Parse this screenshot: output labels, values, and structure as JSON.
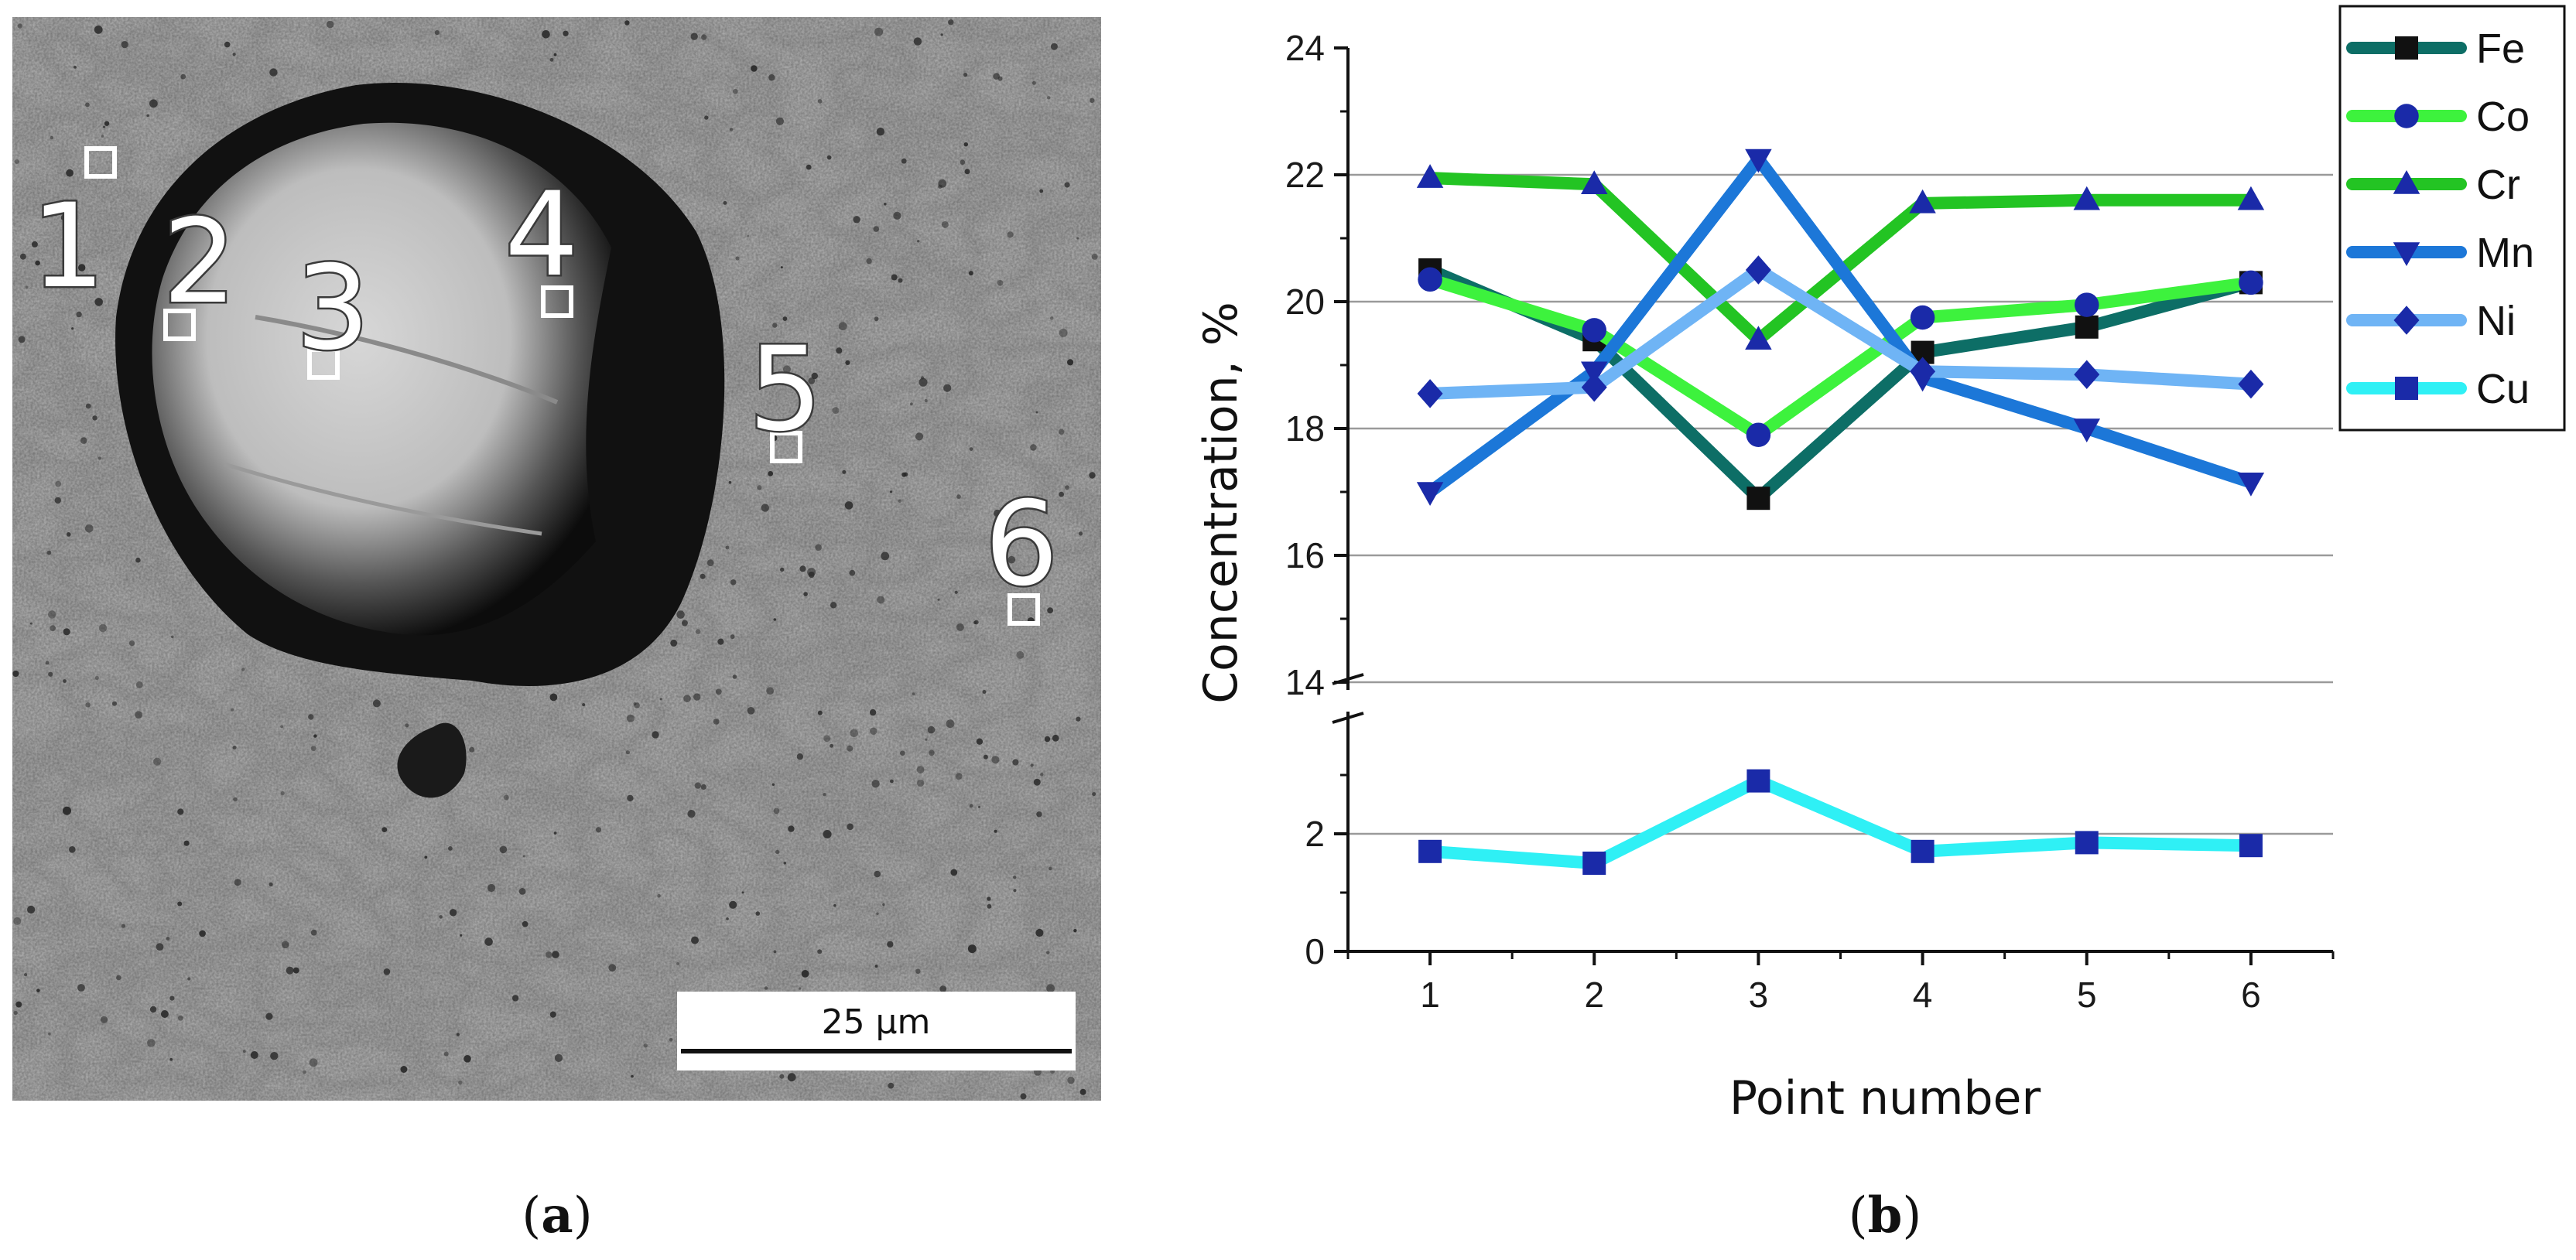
{
  "panels": {
    "a": {
      "label": "a"
    },
    "b": {
      "label": "b"
    }
  },
  "micrograph": {
    "point_labels": [
      "1",
      "2",
      "3",
      "4",
      "5",
      "6"
    ],
    "scale_bar": "25 µm"
  },
  "chart_data": {
    "type": "line",
    "xlabel": "Point number",
    "ylabel": "Concentration, %",
    "x": [
      1,
      2,
      3,
      4,
      5,
      6
    ],
    "xlim": [
      0.5,
      6.5
    ],
    "ylim_upper": [
      14,
      24
    ],
    "ylim_lower": [
      0,
      4
    ],
    "axis_break": true,
    "upper_ticks": [
      14,
      16,
      18,
      20,
      22,
      24
    ],
    "lower_ticks": [
      0,
      2
    ],
    "grid": "horizontal",
    "legend": "top-right, outside plot",
    "series": [
      {
        "name": "Fe",
        "values": [
          20.5,
          19.4,
          16.9,
          19.2,
          19.6,
          20.3
        ],
        "color": "#0d6e66",
        "marker": "square",
        "marker_color": "#111111"
      },
      {
        "name": "Co",
        "values": [
          20.35,
          19.55,
          17.9,
          19.75,
          19.95,
          20.3
        ],
        "color": "#3df23d",
        "marker": "circle",
        "marker_color": "#1a2aa8"
      },
      {
        "name": "Cr",
        "values": [
          21.95,
          21.85,
          19.4,
          21.55,
          21.6,
          21.6
        ],
        "color": "#23c423",
        "marker": "triangle-up",
        "marker_color": "#1a2aa8"
      },
      {
        "name": "Mn",
        "values": [
          17.0,
          18.9,
          22.25,
          18.8,
          18.0,
          17.15
        ],
        "color": "#1c77d8",
        "marker": "triangle-down",
        "marker_color": "#1a2aa8"
      },
      {
        "name": "Ni",
        "values": [
          18.55,
          18.65,
          20.5,
          18.9,
          18.85,
          18.7
        ],
        "color": "#6fb4f5",
        "marker": "diamond",
        "marker_color": "#1a2aa8"
      },
      {
        "name": "Cu",
        "values": [
          1.7,
          1.5,
          2.9,
          1.7,
          1.85,
          1.8
        ],
        "color": "#2ff0f5",
        "marker": "square",
        "marker_color": "#1a2aa8"
      }
    ]
  }
}
